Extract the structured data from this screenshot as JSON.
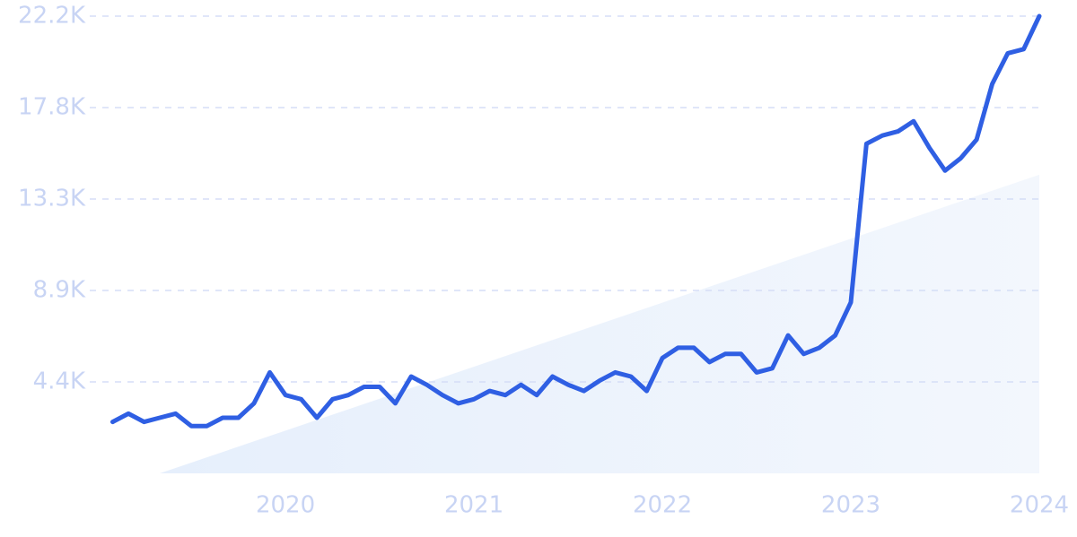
{
  "chart_data": {
    "type": "line",
    "x": [
      2019.083,
      2019.167,
      2019.25,
      2019.333,
      2019.417,
      2019.5,
      2019.583,
      2019.667,
      2019.75,
      2019.833,
      2019.917,
      2020,
      2020.083,
      2020.167,
      2020.25,
      2020.333,
      2020.417,
      2020.5,
      2020.583,
      2020.667,
      2020.75,
      2020.833,
      2020.917,
      2021,
      2021.083,
      2021.167,
      2021.25,
      2021.333,
      2021.417,
      2021.5,
      2021.583,
      2021.667,
      2021.75,
      2021.833,
      2021.917,
      2022,
      2022.083,
      2022.167,
      2022.25,
      2022.333,
      2022.417,
      2022.5,
      2022.583,
      2022.667,
      2022.75,
      2022.833,
      2022.917,
      2023,
      2023.083,
      2023.167,
      2023.25,
      2023.333,
      2023.417,
      2023.5,
      2023.583,
      2023.667,
      2023.75,
      2023.833,
      2023.917,
      2024
    ],
    "series": [
      {
        "color": "#2f5fe3",
        "values": [
          2500,
          2900,
          2500,
          2700,
          2900,
          2300,
          2300,
          2700,
          2700,
          3400,
          4900,
          3800,
          3600,
          2700,
          3600,
          3800,
          4200,
          4200,
          3400,
          4700,
          4300,
          3800,
          3400,
          3600,
          4000,
          3800,
          4300,
          3800,
          4700,
          4300,
          4000,
          4500,
          4900,
          4700,
          4000,
          5600,
          6100,
          6100,
          5400,
          5800,
          5800,
          4900,
          5100,
          6700,
          5800,
          6100,
          6700,
          8300,
          16000,
          16400,
          16600,
          17100,
          15800,
          14700,
          15300,
          16200,
          18900,
          20400,
          20600,
          22200
        ]
      }
    ],
    "trend": {
      "x": [
        2019.333,
        2024
      ],
      "values": [
        0,
        14500
      ],
      "color": "#e3edfb"
    },
    "xlim": [
      2019.083,
      2024
    ],
    "xticks": [
      2020,
      2021,
      2022,
      2023,
      2024
    ],
    "ylim": [
      0,
      22200
    ],
    "yticks": [
      {
        "value": 4440,
        "label": "4.4K"
      },
      {
        "value": 8880,
        "label": "8.9K"
      },
      {
        "value": 13320,
        "label": "13.3K"
      },
      {
        "value": 17760,
        "label": "17.8K"
      },
      {
        "value": 22200,
        "label": "22.2K"
      }
    ],
    "grid": true
  }
}
